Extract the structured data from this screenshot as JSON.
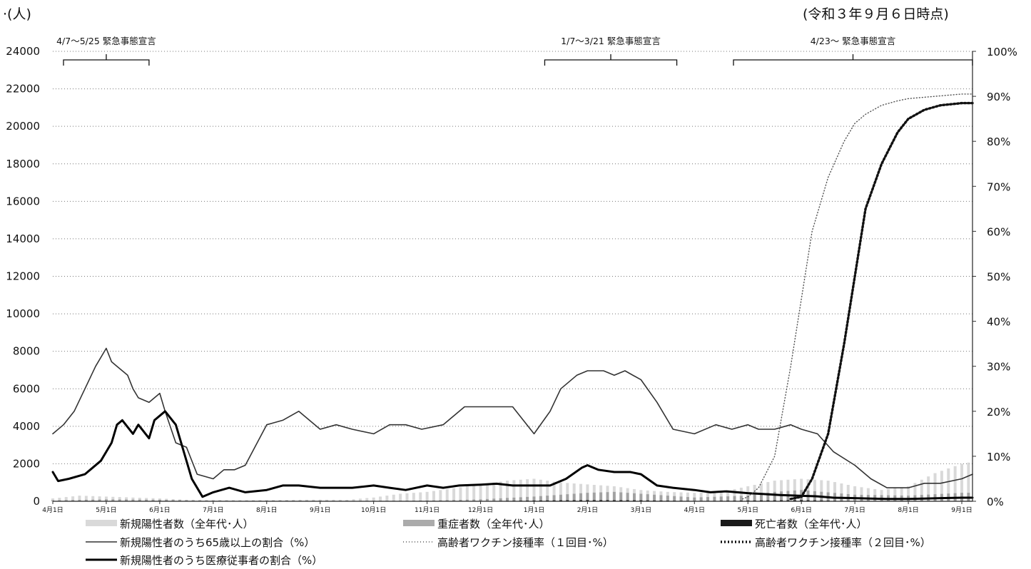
{
  "chart_data": {
    "type": "line",
    "y_unit_label": "·(人)",
    "as_of_note": "(令和３年９月６日時点)",
    "left_axis": {
      "ylim": [
        0,
        24000
      ],
      "ticks": [
        "0",
        "2000",
        "4000",
        "6000",
        "8000",
        "10000",
        "12000",
        "14000",
        "16000",
        "18000",
        "20000",
        "22000",
        "24000"
      ]
    },
    "right_axis": {
      "ylim": [
        0,
        100
      ],
      "ticks": [
        "0%",
        "10%",
        "20%",
        "30%",
        "40%",
        "50%",
        "60%",
        "70%",
        "80%",
        "90%",
        "100%"
      ]
    },
    "x_tick_labels": [
      "4月1日",
      "5月1日",
      "6月1日",
      "7月1日",
      "8月1日",
      "9月1日",
      "10月1日",
      "11月1日",
      "12月1日",
      "1月1日",
      "2月1日",
      "3月1日",
      "4月1日",
      "5月1日",
      "6月1日",
      "7月1日",
      "8月1日",
      "9月1日"
    ],
    "x_range_months": [
      0,
      17.2
    ],
    "grid": true,
    "legend_position": "bottom",
    "emergency_periods": [
      {
        "label": "4/7～5/25 緊急事態宣言",
        "start": 0.2,
        "end": 1.8
      },
      {
        "label": "1/7～3/21 緊急事態宣言",
        "start": 9.2,
        "end": 11.67
      },
      {
        "label": "4/23～ 緊急事態宣言",
        "start": 12.73,
        "end": 17.2
      }
    ],
    "legend": [
      {
        "label": "新規陽性者数（全年代･人）",
        "swatch": "light-bar"
      },
      {
        "label": "重症者数（全年代･人）",
        "swatch": "gray-bar"
      },
      {
        "label": "死亡者数（全年代･人）",
        "swatch": "dark-bar"
      },
      {
        "label": "新規陽性者のうち65歳以上の割合（%）",
        "swatch": "thin-line"
      },
      {
        "label": "高齢者ワクチン接種率（１回目･%）",
        "swatch": "fine-dotted"
      },
      {
        "label": "高齢者ワクチン接種率（２回目･%）",
        "swatch": "bold-dotted"
      },
      {
        "label": "新規陽性者のうち医療従事者の割合（%）",
        "swatch": "thick-line"
      }
    ],
    "series": [
      {
        "key": "elderly_share",
        "axis": "right",
        "style": "thin-line",
        "x": [
          0,
          0.2,
          0.4,
          0.6,
          0.8,
          1.0,
          1.1,
          1.2,
          1.4,
          1.5,
          1.6,
          1.8,
          2.0,
          2.1,
          2.3,
          2.5,
          2.7,
          3.0,
          3.2,
          3.4,
          3.6,
          4.0,
          4.3,
          4.6,
          5.0,
          5.3,
          5.6,
          6.0,
          6.3,
          6.6,
          6.9,
          7.3,
          7.7,
          8.0,
          8.3,
          8.6,
          9.0,
          9.3,
          9.5,
          9.8,
          10.0,
          10.3,
          10.5,
          10.7,
          11.0,
          11.3,
          11.6,
          12.0,
          12.4,
          12.7,
          13.0,
          13.2,
          13.5,
          13.8,
          14.0,
          14.3,
          14.6,
          15.0,
          15.3,
          15.6,
          16.0,
          16.3,
          16.6,
          17.0,
          17.2
        ],
        "y": [
          15,
          17,
          20,
          25,
          30,
          34,
          31,
          30,
          28,
          25,
          23,
          22,
          24,
          20,
          13,
          12,
          6,
          5,
          7,
          7,
          8,
          17,
          18,
          20,
          16,
          17,
          16,
          15,
          17,
          17,
          16,
          17,
          21,
          21,
          21,
          21,
          15,
          20,
          25,
          28,
          29,
          29,
          28,
          29,
          27,
          22,
          16,
          15,
          17,
          16,
          17,
          16,
          16,
          17,
          16,
          15,
          11,
          8,
          5,
          3,
          3,
          4,
          4,
          5,
          6
        ]
      },
      {
        "key": "medical_share",
        "axis": "right",
        "style": "thick-line",
        "x": [
          0,
          0.1,
          0.3,
          0.6,
          0.9,
          1.1,
          1.2,
          1.3,
          1.5,
          1.6,
          1.8,
          1.9,
          2.1,
          2.3,
          2.6,
          2.8,
          3.0,
          3.3,
          3.6,
          4.0,
          4.3,
          4.6,
          5.0,
          5.3,
          5.6,
          6.0,
          6.3,
          6.6,
          7.0,
          7.3,
          7.6,
          8.0,
          8.3,
          8.6,
          9.0,
          9.3,
          9.6,
          9.9,
          10.0,
          10.2,
          10.5,
          10.8,
          11.0,
          11.3,
          11.6,
          12.0,
          12.3,
          12.6,
          13.0,
          13.3,
          13.6,
          14.0,
          14.3,
          14.6,
          15.0,
          15.3,
          15.6,
          16.0,
          16.3,
          16.6,
          17.0,
          17.2
        ],
        "y": [
          6.5,
          4.5,
          5,
          6,
          9,
          13,
          17,
          18,
          15,
          17,
          14,
          18,
          20,
          17,
          5,
          1,
          2,
          3,
          2,
          2.5,
          3.5,
          3.5,
          3,
          3,
          3,
          3.5,
          3,
          2.5,
          3.5,
          3,
          3.5,
          3.7,
          3.9,
          3.5,
          3.5,
          3.5,
          5,
          7.5,
          8,
          7,
          6.5,
          6.5,
          6,
          3.5,
          3,
          2.5,
          2,
          2.2,
          1.8,
          1.6,
          1.4,
          1.2,
          1.1,
          0.8,
          0.7,
          0.6,
          0.5,
          0.5,
          0.6,
          0.7,
          0.8,
          0.8
        ]
      },
      {
        "key": "vaccine_1st",
        "axis": "right",
        "style": "fine-dotted",
        "x": [
          12.9,
          13.0,
          13.2,
          13.5,
          13.8,
          14.0,
          14.2,
          14.5,
          14.8,
          15.0,
          15.2,
          15.5,
          15.8,
          16.0,
          16.5,
          17.0,
          17.2
        ],
        "y": [
          0.5,
          1,
          3,
          10,
          30,
          45,
          60,
          72,
          80,
          84,
          86,
          88,
          89,
          89.5,
          90,
          90.5,
          90.5
        ]
      },
      {
        "key": "vaccine_2nd",
        "axis": "right",
        "style": "bold-dotted",
        "x": [
          13.8,
          14.0,
          14.2,
          14.5,
          14.8,
          15.0,
          15.2,
          15.5,
          15.8,
          16.0,
          16.3,
          16.6,
          17.0,
          17.2
        ],
        "y": [
          0.5,
          1,
          5,
          15,
          35,
          50,
          65,
          75,
          82,
          85,
          87,
          88,
          88.5,
          88.5
        ]
      },
      {
        "key": "new_positive",
        "axis": "left",
        "style": "light-bar",
        "x": [
          0,
          0.5,
          1,
          1.5,
          2,
          2.5,
          3,
          3.5,
          4,
          4.5,
          5,
          5.5,
          6,
          6.5,
          7,
          7.5,
          8,
          8.5,
          9,
          9.5,
          10,
          10.5,
          11,
          11.5,
          12,
          12.5,
          13,
          13.5,
          14,
          14.5,
          15,
          15.5,
          16,
          16.5,
          17,
          17.2
        ],
        "y": [
          150,
          300,
          250,
          200,
          150,
          80,
          80,
          60,
          60,
          80,
          90,
          80,
          200,
          400,
          500,
          700,
          900,
          1100,
          1200,
          1000,
          900,
          800,
          600,
          500,
          450,
          500,
          800,
          1100,
          1200,
          1100,
          800,
          600,
          800,
          1500,
          2000,
          2100
        ]
      },
      {
        "key": "severe",
        "axis": "left",
        "style": "gray-bar",
        "x": [
          0,
          1,
          2,
          3,
          4,
          5,
          6,
          7,
          8,
          9,
          10,
          10.5,
          11,
          12,
          13,
          13.5,
          14,
          15,
          16,
          17,
          17.2
        ],
        "y": [
          50,
          100,
          80,
          30,
          40,
          40,
          30,
          40,
          100,
          250,
          450,
          500,
          400,
          200,
          300,
          500,
          600,
          350,
          300,
          450,
          450
        ]
      },
      {
        "key": "deaths",
        "axis": "left",
        "style": "dark-bar",
        "x": [
          0,
          2,
          4,
          6,
          8,
          9,
          10,
          11,
          12,
          13,
          14,
          15,
          16,
          17,
          17.2
        ],
        "y": [
          5,
          10,
          5,
          5,
          15,
          40,
          60,
          50,
          20,
          40,
          60,
          15,
          10,
          20,
          25
        ]
      }
    ]
  }
}
